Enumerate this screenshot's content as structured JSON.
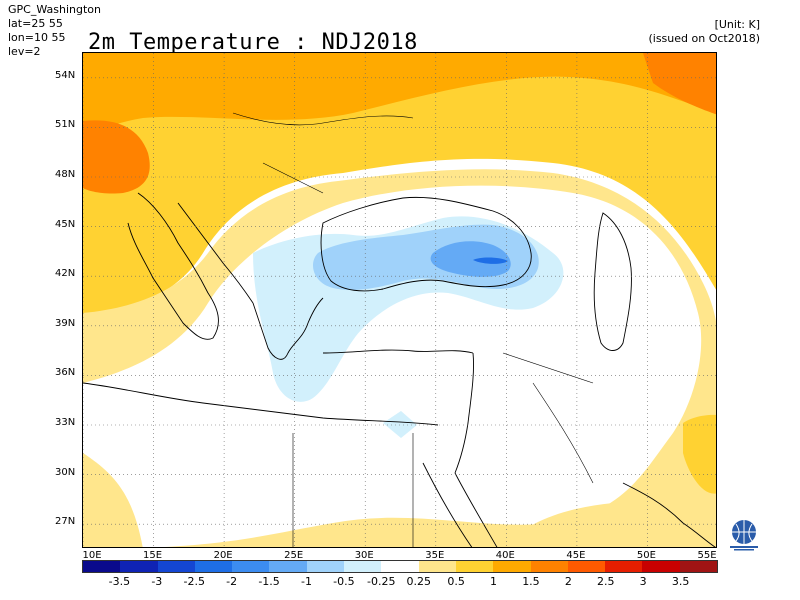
{
  "header": {
    "source": "GPC_Washington",
    "lat": "lat=25 55",
    "lon": "lon=10 55",
    "lev": "lev=2",
    "title": "2m Temperature : NDJ2018",
    "unit": "[Unit: K]",
    "issued": "(issued on Oct2018)"
  },
  "map": {
    "lat_labels": [
      "54N",
      "51N",
      "48N",
      "45N",
      "42N",
      "39N",
      "36N",
      "33N",
      "30N",
      "27N"
    ],
    "lon_labels": [
      "10E",
      "15E",
      "20E",
      "25E",
      "30E",
      "35E",
      "40E",
      "45E",
      "50E",
      "55E"
    ],
    "lat_values": [
      54,
      51,
      48,
      45,
      42,
      39,
      36,
      33,
      30,
      27
    ],
    "lon_values": [
      10,
      15,
      20,
      25,
      30,
      35,
      40,
      45,
      50,
      55
    ],
    "lat_range": [
      25.5,
      55.5
    ],
    "lon_range": [
      10,
      55
    ]
  },
  "legend": {
    "labels": [
      "-3.5",
      "-3",
      "-2.5",
      "-2",
      "-1.5",
      "-1",
      "-0.5",
      "-0.25",
      "0.25",
      "0.5",
      "1",
      "1.5",
      "2",
      "2.5",
      "3",
      "3.5"
    ],
    "colors": [
      "#0a0a8c",
      "#0f23b4",
      "#1446d2",
      "#1e6ee6",
      "#3c8cf0",
      "#64aaf5",
      "#a0d2fa",
      "#d2f0fc",
      "#ffffff",
      "#ffe68c",
      "#ffd232",
      "#ffaa00",
      "#ff8200",
      "#ff5a00",
      "#e61e00",
      "#c80000",
      "#a01414"
    ]
  },
  "logo": {
    "icon": "wmo-globe-logo"
  }
}
